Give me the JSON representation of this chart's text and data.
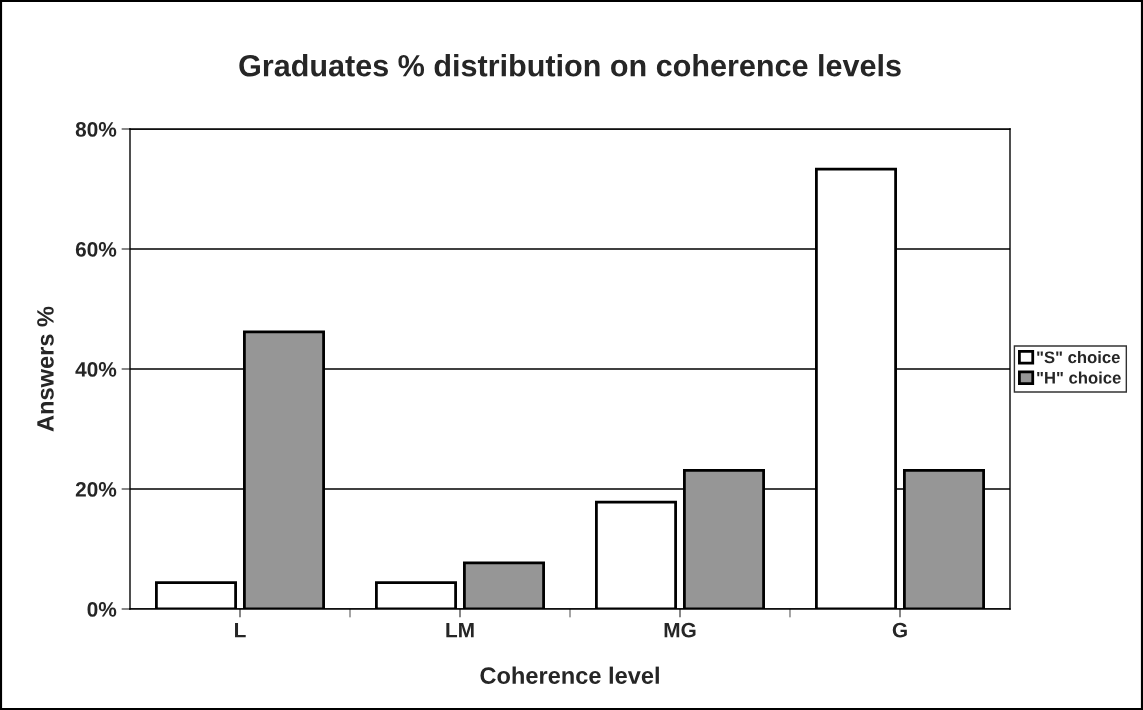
{
  "chart_data": {
    "type": "bar",
    "title": "Graduates % distribution on coherence levels",
    "xlabel": "Coherence level",
    "ylabel": "Answers %",
    "categories": [
      "L",
      "LM",
      "MG",
      "G"
    ],
    "series": [
      {
        "name": "\"S\" choice",
        "color": "#ffffff",
        "values": [
          4.4,
          4.4,
          17.8,
          73.3
        ]
      },
      {
        "name": "\"H\" choice",
        "color": "#969696",
        "values": [
          46.2,
          7.7,
          23.1,
          23.1
        ]
      }
    ],
    "ylim": [
      0,
      80
    ],
    "yticks": [
      {
        "value": 0,
        "label": "0%"
      },
      {
        "value": 20,
        "label": "20%"
      },
      {
        "value": 40,
        "label": "40%"
      },
      {
        "value": 60,
        "label": "60%"
      },
      {
        "value": 80,
        "label": "80%"
      }
    ],
    "grid": "y",
    "legend": "right"
  }
}
